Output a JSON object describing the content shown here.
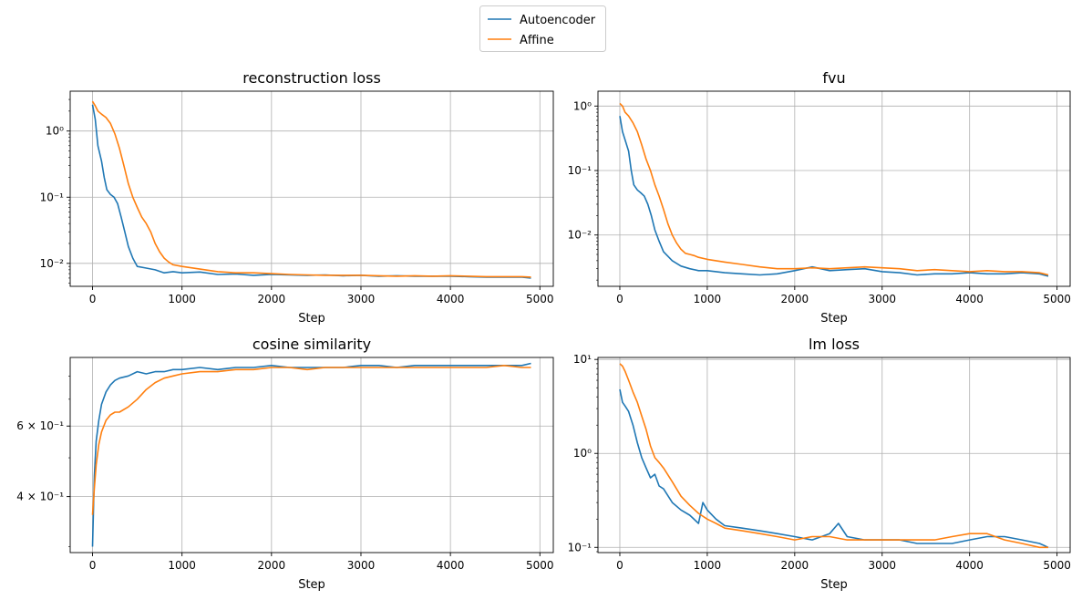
{
  "legend": {
    "entries": [
      {
        "name": "Autoencoder",
        "color": "#1f77b4"
      },
      {
        "name": "Affine",
        "color": "#ff7f0e"
      }
    ],
    "placement": "top-center"
  },
  "chart_data": [
    {
      "type": "line",
      "title": "reconstruction loss",
      "xlabel": "Step",
      "ylabel": "",
      "yscale": "log",
      "xlim": [
        -250,
        5150
      ],
      "ylim": [
        0.0045,
        4.0
      ],
      "xticks": [
        0,
        1000,
        2000,
        3000,
        4000,
        5000
      ],
      "xtick_labels": [
        "0",
        "1000",
        "2000",
        "3000",
        "4000",
        "5000"
      ],
      "yticks": [
        0.01,
        0.1,
        1
      ],
      "ytick_labels": [
        "10⁻²",
        "10⁻¹",
        "10⁰"
      ],
      "grid": true,
      "series": [
        {
          "name": "Autoencoder",
          "color": "#1f77b4",
          "x": [
            0,
            30,
            60,
            100,
            130,
            160,
            200,
            240,
            280,
            320,
            360,
            400,
            450,
            500,
            600,
            700,
            800,
            900,
            1000,
            1200,
            1400,
            1600,
            1800,
            2000,
            2200,
            2400,
            2600,
            2800,
            3000,
            3200,
            3400,
            3600,
            3800,
            4000,
            4200,
            4400,
            4600,
            4800,
            4900
          ],
          "y": [
            2.5,
            1.5,
            0.6,
            0.35,
            0.2,
            0.13,
            0.11,
            0.1,
            0.08,
            0.05,
            0.03,
            0.018,
            0.012,
            0.009,
            0.0085,
            0.008,
            0.0072,
            0.0075,
            0.0072,
            0.0074,
            0.0068,
            0.0069,
            0.0066,
            0.0068,
            0.0067,
            0.0066,
            0.0067,
            0.0065,
            0.0066,
            0.0064,
            0.0065,
            0.0064,
            0.0064,
            0.0064,
            0.0063,
            0.0062,
            0.0062,
            0.0062,
            0.006
          ]
        },
        {
          "name": "Affine",
          "color": "#ff7f0e",
          "x": [
            0,
            30,
            60,
            100,
            150,
            200,
            250,
            300,
            350,
            400,
            450,
            500,
            550,
            600,
            650,
            700,
            750,
            800,
            850,
            900,
            1000,
            1200,
            1400,
            1600,
            1800,
            2000,
            2200,
            2400,
            2600,
            2800,
            3000,
            3200,
            3400,
            3600,
            3800,
            4000,
            4200,
            4400,
            4600,
            4800,
            4900
          ],
          "y": [
            2.8,
            2.4,
            2.0,
            1.8,
            1.6,
            1.3,
            0.9,
            0.55,
            0.3,
            0.16,
            0.1,
            0.07,
            0.05,
            0.04,
            0.03,
            0.02,
            0.015,
            0.012,
            0.0105,
            0.0095,
            0.009,
            0.0082,
            0.0075,
            0.0072,
            0.0072,
            0.007,
            0.0068,
            0.0067,
            0.0066,
            0.0066,
            0.0066,
            0.0065,
            0.0064,
            0.0065,
            0.0064,
            0.0065,
            0.0064,
            0.0063,
            0.0063,
            0.0063,
            0.0062
          ]
        }
      ]
    },
    {
      "type": "line",
      "title": "fvu",
      "xlabel": "Step",
      "ylabel": "",
      "yscale": "log",
      "xlim": [
        -250,
        5150
      ],
      "ylim": [
        0.0016,
        1.7
      ],
      "xticks": [
        0,
        1000,
        2000,
        3000,
        4000,
        5000
      ],
      "xtick_labels": [
        "0",
        "1000",
        "2000",
        "3000",
        "4000",
        "5000"
      ],
      "yticks": [
        0.01,
        0.1,
        1
      ],
      "ytick_labels": [
        "10⁻²",
        "10⁻¹",
        "10⁰"
      ],
      "grid": true,
      "series": [
        {
          "name": "Autoencoder",
          "color": "#1f77b4",
          "x": [
            0,
            30,
            60,
            100,
            130,
            160,
            200,
            240,
            280,
            320,
            360,
            400,
            450,
            500,
            600,
            700,
            800,
            900,
            1000,
            1200,
            1400,
            1600,
            1800,
            2000,
            2200,
            2400,
            2600,
            2800,
            3000,
            3200,
            3400,
            3600,
            3800,
            4000,
            4200,
            4400,
            4600,
            4800,
            4900
          ],
          "y": [
            0.7,
            0.4,
            0.3,
            0.2,
            0.1,
            0.06,
            0.05,
            0.045,
            0.04,
            0.03,
            0.02,
            0.012,
            0.008,
            0.0055,
            0.004,
            0.0033,
            0.003,
            0.0028,
            0.0028,
            0.0026,
            0.0025,
            0.0024,
            0.0025,
            0.0028,
            0.0032,
            0.0028,
            0.0029,
            0.003,
            0.0027,
            0.0026,
            0.0024,
            0.0025,
            0.0025,
            0.0026,
            0.0025,
            0.0025,
            0.0026,
            0.0025,
            0.0023
          ]
        },
        {
          "name": "Affine",
          "color": "#ff7f0e",
          "x": [
            0,
            30,
            60,
            100,
            150,
            200,
            250,
            300,
            350,
            400,
            450,
            500,
            550,
            600,
            650,
            700,
            750,
            800,
            850,
            900,
            1000,
            1200,
            1400,
            1600,
            1800,
            2000,
            2200,
            2400,
            2600,
            2800,
            3000,
            3200,
            3400,
            3600,
            3800,
            4000,
            4200,
            4400,
            4600,
            4800,
            4900
          ],
          "y": [
            1.1,
            1.0,
            0.8,
            0.7,
            0.55,
            0.4,
            0.25,
            0.15,
            0.1,
            0.06,
            0.04,
            0.025,
            0.015,
            0.01,
            0.0075,
            0.006,
            0.0052,
            0.005,
            0.0048,
            0.0045,
            0.0042,
            0.0038,
            0.0035,
            0.0032,
            0.003,
            0.003,
            0.0031,
            0.003,
            0.0031,
            0.0032,
            0.0031,
            0.003,
            0.0028,
            0.0029,
            0.0028,
            0.0027,
            0.0028,
            0.0027,
            0.0027,
            0.0026,
            0.0024
          ]
        }
      ]
    },
    {
      "type": "line",
      "title": "cosine similarity",
      "xlabel": "Step",
      "ylabel": "",
      "yscale": "log",
      "xlim": [
        -250,
        5150
      ],
      "ylim": [
        0.29,
        0.89
      ],
      "xticks": [
        0,
        1000,
        2000,
        3000,
        4000,
        5000
      ],
      "xtick_labels": [
        "0",
        "1000",
        "2000",
        "3000",
        "4000",
        "5000"
      ],
      "yticks": [
        0.4,
        0.6
      ],
      "ytick_labels": [
        "4 × 10⁻¹",
        "6 × 10⁻¹"
      ],
      "grid": true,
      "series": [
        {
          "name": "Autoencoder",
          "color": "#1f77b4",
          "x": [
            0,
            20,
            40,
            70,
            100,
            150,
            200,
            250,
            300,
            400,
            500,
            600,
            700,
            800,
            900,
            1000,
            1200,
            1400,
            1600,
            1800,
            2000,
            2200,
            2400,
            2600,
            2800,
            3000,
            3200,
            3400,
            3600,
            3800,
            4000,
            4200,
            4400,
            4600,
            4800,
            4900
          ],
          "y": [
            0.3,
            0.45,
            0.55,
            0.62,
            0.68,
            0.73,
            0.76,
            0.78,
            0.79,
            0.8,
            0.82,
            0.81,
            0.82,
            0.82,
            0.83,
            0.83,
            0.84,
            0.83,
            0.84,
            0.84,
            0.85,
            0.84,
            0.84,
            0.84,
            0.84,
            0.85,
            0.85,
            0.84,
            0.85,
            0.85,
            0.85,
            0.85,
            0.85,
            0.85,
            0.85,
            0.86
          ]
        },
        {
          "name": "Affine",
          "color": "#ff7f0e",
          "x": [
            0,
            20,
            40,
            70,
            100,
            150,
            200,
            250,
            300,
            400,
            500,
            600,
            700,
            800,
            900,
            1000,
            1200,
            1400,
            1600,
            1800,
            2000,
            2200,
            2400,
            2600,
            2800,
            3000,
            3200,
            3400,
            3600,
            3800,
            4000,
            4200,
            4400,
            4600,
            4800,
            4900
          ],
          "y": [
            0.36,
            0.42,
            0.48,
            0.54,
            0.58,
            0.62,
            0.64,
            0.65,
            0.65,
            0.67,
            0.7,
            0.74,
            0.77,
            0.79,
            0.8,
            0.81,
            0.82,
            0.82,
            0.83,
            0.83,
            0.84,
            0.84,
            0.83,
            0.84,
            0.84,
            0.84,
            0.84,
            0.84,
            0.84,
            0.84,
            0.84,
            0.84,
            0.84,
            0.85,
            0.84,
            0.84
          ]
        }
      ]
    },
    {
      "type": "line",
      "title": "lm loss",
      "xlabel": "Step",
      "ylabel": "",
      "yscale": "log",
      "xlim": [
        -250,
        5150
      ],
      "ylim": [
        0.088,
        10.5
      ],
      "xticks": [
        0,
        1000,
        2000,
        3000,
        4000,
        5000
      ],
      "xtick_labels": [
        "0",
        "1000",
        "2000",
        "3000",
        "4000",
        "5000"
      ],
      "yticks": [
        0.1,
        1,
        10
      ],
      "ytick_labels": [
        "10⁻¹",
        "10⁰",
        "10¹"
      ],
      "grid": true,
      "series": [
        {
          "name": "Autoencoder",
          "color": "#1f77b4",
          "x": [
            0,
            30,
            60,
            100,
            150,
            200,
            250,
            300,
            350,
            400,
            450,
            500,
            600,
            700,
            800,
            900,
            950,
            1000,
            1100,
            1200,
            1400,
            1600,
            1800,
            2000,
            2200,
            2400,
            2500,
            2600,
            2800,
            3000,
            3200,
            3400,
            3600,
            3800,
            4000,
            4200,
            4400,
            4600,
            4800,
            4900
          ],
          "y": [
            4.8,
            3.5,
            3.2,
            2.8,
            2.0,
            1.3,
            0.9,
            0.7,
            0.55,
            0.6,
            0.45,
            0.42,
            0.3,
            0.25,
            0.22,
            0.18,
            0.3,
            0.25,
            0.2,
            0.17,
            0.16,
            0.15,
            0.14,
            0.13,
            0.12,
            0.14,
            0.18,
            0.13,
            0.12,
            0.12,
            0.12,
            0.11,
            0.11,
            0.11,
            0.12,
            0.13,
            0.13,
            0.12,
            0.11,
            0.1
          ]
        },
        {
          "name": "Affine",
          "color": "#ff7f0e",
          "x": [
            0,
            30,
            60,
            100,
            150,
            200,
            250,
            300,
            350,
            400,
            450,
            500,
            600,
            700,
            800,
            900,
            1000,
            1100,
            1200,
            1400,
            1600,
            1800,
            2000,
            2200,
            2400,
            2600,
            2800,
            3000,
            3200,
            3400,
            3600,
            3800,
            4000,
            4200,
            4400,
            4600,
            4800,
            4900
          ],
          "y": [
            9.0,
            8.5,
            7.5,
            6.0,
            4.5,
            3.5,
            2.5,
            1.8,
            1.2,
            0.9,
            0.8,
            0.7,
            0.5,
            0.35,
            0.28,
            0.23,
            0.2,
            0.18,
            0.16,
            0.15,
            0.14,
            0.13,
            0.12,
            0.13,
            0.13,
            0.12,
            0.12,
            0.12,
            0.12,
            0.12,
            0.12,
            0.13,
            0.14,
            0.14,
            0.12,
            0.11,
            0.1,
            0.1
          ]
        }
      ]
    }
  ]
}
